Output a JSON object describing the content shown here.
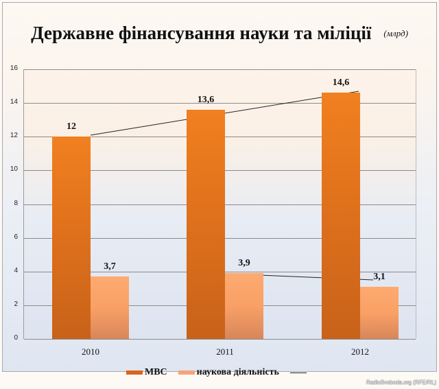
{
  "title": "Державне фінансування науки та міліції",
  "unit": "(млрд)",
  "credit": "RadioSvoboda.org (RFE/RL)",
  "colors": {
    "mvs": "#ec7c1e",
    "science": "#f9a368",
    "trend": "#222222"
  },
  "yticks": [
    "0",
    "2",
    "4",
    "6",
    "8",
    "10",
    "12",
    "14",
    "16"
  ],
  "xlabels": [
    "2010",
    "2011",
    "2012"
  ],
  "labels": {
    "mvs": [
      "12",
      "13,6",
      "14,6"
    ],
    "science": [
      "3,7",
      "3,9",
      "3,1"
    ]
  },
  "legend": {
    "mvs": "МВС",
    "science": "наукова діяльність",
    "trend": ""
  },
  "chart_data": {
    "type": "bar",
    "title": "Державне фінансування науки та міліції (млрд)",
    "categories": [
      "2010",
      "2011",
      "2012"
    ],
    "series": [
      {
        "name": "МВС",
        "values": [
          12,
          13.6,
          14.6
        ]
      },
      {
        "name": "наукова діяльність",
        "values": [
          3.7,
          3.9,
          3.1
        ]
      }
    ],
    "trendlines": [
      {
        "series": "МВС",
        "from": [
          2010,
          12
        ],
        "to": [
          2012,
          14.6
        ]
      },
      {
        "series": "наукова діяльність",
        "from": [
          2011,
          3.9
        ],
        "to": [
          2012,
          3.5
        ]
      }
    ],
    "xlabel": "",
    "ylabel": "",
    "ylim": [
      0,
      16
    ],
    "yticks": [
      0,
      2,
      4,
      6,
      8,
      10,
      12,
      14,
      16
    ],
    "grid": true,
    "legend_position": "bottom"
  }
}
